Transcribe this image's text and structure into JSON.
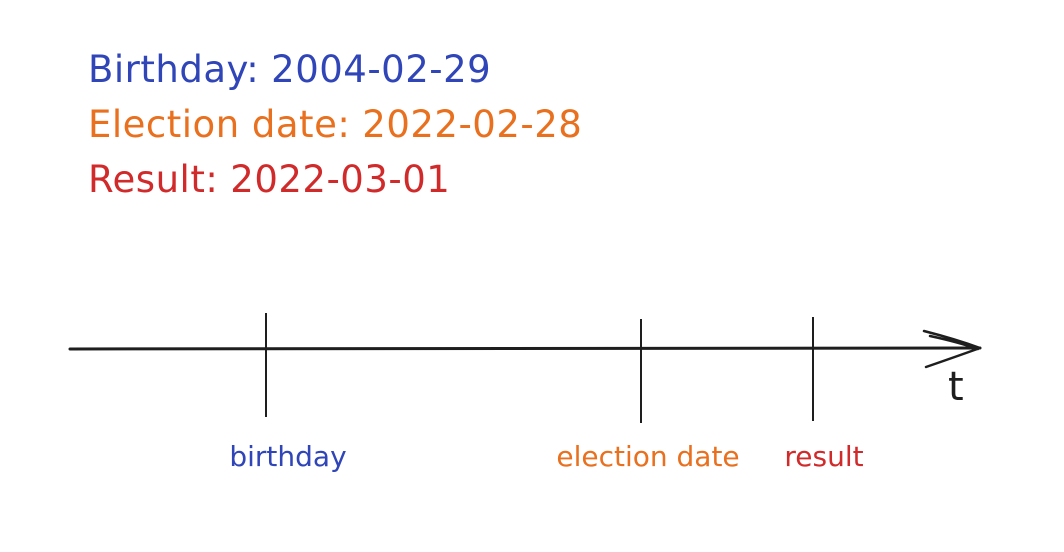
{
  "legend": {
    "birthday": {
      "label": "Birthday:",
      "value": "2004-02-29",
      "color": "#2f45b8"
    },
    "election": {
      "label": "Election date:",
      "value": "2022-02-28",
      "color": "#e8701e"
    },
    "result": {
      "label": "Result:",
      "value": "2022-03-01",
      "color": "#d02a2a"
    }
  },
  "timeline": {
    "axis_label": "t",
    "axis_color": "#1e1e1e",
    "events": [
      {
        "id": "birthday",
        "label": "birthday",
        "color": "#2f45b8"
      },
      {
        "id": "election",
        "label": "election date",
        "color": "#e8701e"
      },
      {
        "id": "result",
        "label": "result",
        "color": "#d02a2a"
      }
    ]
  }
}
